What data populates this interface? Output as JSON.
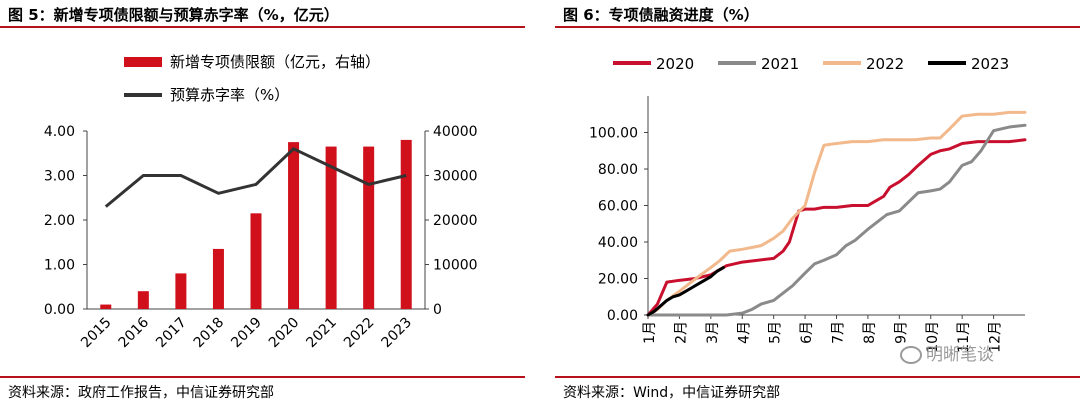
{
  "left": {
    "title": "图 5：新增专项债限额与预算赤字率（%，亿元）",
    "source": "资料来源：政府工作报告，中信证券研究部",
    "chart_data": {
      "type": "bar+line",
      "categories": [
        "2015",
        "2016",
        "2017",
        "2018",
        "2019",
        "2020",
        "2021",
        "2022",
        "2023"
      ],
      "series": [
        {
          "name": "新增专项债限额（亿元，右轴）",
          "kind": "bar",
          "axis": "right",
          "color": "#d0101b",
          "values": [
            1000,
            4000,
            8000,
            13500,
            21500,
            37500,
            36500,
            36500,
            38000
          ]
        },
        {
          "name": "预算赤字率（%）",
          "kind": "line",
          "axis": "left",
          "color": "#333333",
          "values": [
            2.3,
            3.0,
            3.0,
            2.6,
            2.8,
            3.6,
            3.2,
            2.8,
            3.0
          ]
        }
      ],
      "yleft": {
        "ticks": [
          "0.00",
          "1.00",
          "2.00",
          "3.00",
          "4.00"
        ],
        "lim": [
          0,
          4
        ]
      },
      "yright": {
        "ticks": [
          "0",
          "10000",
          "20000",
          "30000",
          "40000"
        ],
        "lim": [
          0,
          40000
        ]
      },
      "legend_position": "top-left"
    }
  },
  "right": {
    "title": "图 6：专项债融资进度（%）",
    "source": "资料来源：Wind，中信证券研究部",
    "chart_data": {
      "type": "line",
      "xlim": [
        1,
        13
      ],
      "xticks": [
        "1月",
        "2月",
        "3月",
        "4月",
        "5月",
        "6月",
        "7月",
        "8月",
        "9月",
        "10月",
        "11月",
        "12月"
      ],
      "ylim": [
        0,
        120
      ],
      "yticks": [
        "0.00",
        "20.00",
        "40.00",
        "60.00",
        "80.00",
        "100.00"
      ],
      "legend_position": "top",
      "series": [
        {
          "name": "2020",
          "color": "#c8102e",
          "x": [
            1,
            1.3,
            1.6,
            2,
            2.5,
            3,
            3.5,
            4,
            4.5,
            5,
            5.3,
            5.5,
            5.8,
            6,
            6.3,
            6.6,
            7,
            7.5,
            8,
            8.2,
            8.5,
            8.7,
            9,
            9.3,
            9.6,
            10,
            10.3,
            10.6,
            11,
            11.5,
            12,
            12.5,
            13
          ],
          "y": [
            0,
            6,
            18,
            19,
            20,
            22,
            27,
            29,
            30,
            31,
            35,
            40,
            57,
            58,
            58,
            59,
            59,
            60,
            60,
            62,
            65,
            70,
            73,
            77,
            82,
            88,
            90,
            91,
            94,
            95,
            95,
            95,
            96
          ]
        },
        {
          "name": "2021",
          "color": "#8a8a8a",
          "x": [
            1,
            2,
            3,
            3.5,
            4,
            4.3,
            4.6,
            5,
            5.3,
            5.6,
            6,
            6.3,
            6.6,
            7,
            7.3,
            7.6,
            8,
            8.3,
            8.6,
            9,
            9.3,
            9.6,
            10,
            10.3,
            10.6,
            11,
            11.3,
            11.6,
            12,
            12.5,
            13
          ],
          "y": [
            0,
            0,
            0,
            0,
            1,
            3,
            6,
            8,
            12,
            16,
            23,
            28,
            30,
            33,
            38,
            41,
            47,
            51,
            55,
            57,
            62,
            67,
            68,
            69,
            73,
            82,
            84,
            90,
            101,
            103,
            104
          ]
        },
        {
          "name": "2022",
          "color": "#f2b98c",
          "x": [
            1,
            1.3,
            1.6,
            2,
            2.3,
            2.6,
            3,
            3.3,
            3.6,
            4,
            4.3,
            4.6,
            5,
            5.3,
            5.6,
            6,
            6.3,
            6.6,
            7,
            7.5,
            8,
            8.5,
            9,
            9.5,
            10,
            10.3,
            10.6,
            11,
            11.5,
            12,
            12.5,
            13
          ],
          "y": [
            0,
            3,
            8,
            13,
            17,
            21,
            26,
            30,
            35,
            36,
            37,
            38,
            42,
            46,
            53,
            60,
            78,
            93,
            94,
            95,
            95,
            96,
            96,
            96,
            97,
            97,
            102,
            109,
            110,
            110,
            111,
            111
          ]
        },
        {
          "name": "2023",
          "color": "#000000",
          "x": [
            1,
            1.2,
            1.4,
            1.6,
            1.8,
            2,
            2.2,
            2.4,
            2.6,
            2.8,
            3,
            3.2,
            3.4
          ],
          "y": [
            0,
            2,
            5,
            8,
            10,
            11,
            13,
            15,
            17,
            19,
            21,
            24,
            26
          ]
        }
      ]
    }
  },
  "watermark": "明晰笔谈"
}
